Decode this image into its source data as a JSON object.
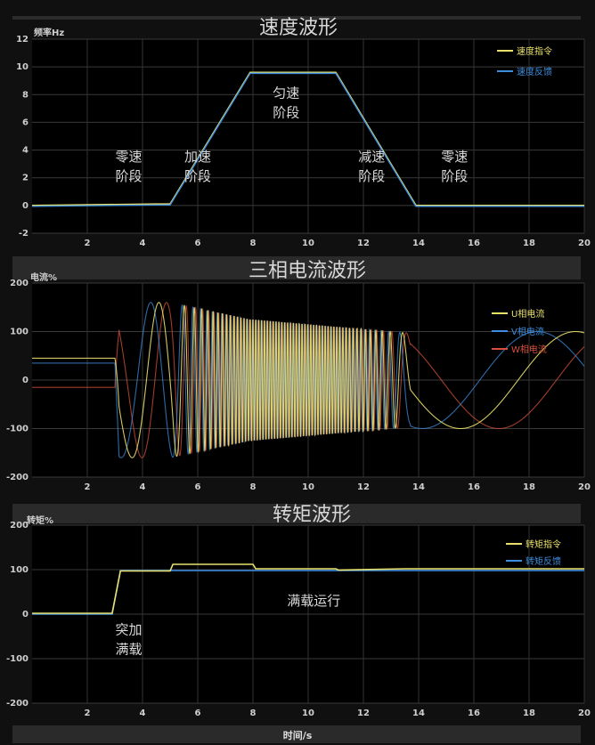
{
  "chart_data": [
    {
      "type": "line",
      "title": "速度波形",
      "ylabel": "频率Hz",
      "xlim": [
        0,
        20
      ],
      "ylim": [
        -2,
        12
      ],
      "xticks": [
        2,
        4,
        6,
        8,
        10,
        12,
        14,
        16,
        18,
        20
      ],
      "yticks": [
        -2,
        0,
        2,
        4,
        6,
        8,
        10,
        12
      ],
      "legend_position": "top-right",
      "grid": true,
      "series": [
        {
          "name": "速度指令",
          "color": "#e8e06a",
          "x": [
            0,
            4.5,
            5.0,
            7.9,
            11.0,
            13.9,
            20
          ],
          "y": [
            0,
            0.1,
            0.1,
            9.6,
            9.6,
            0,
            0
          ]
        },
        {
          "name": "速度反馈",
          "color": "#3d8ee0",
          "x": [
            0,
            4.5,
            5.0,
            7.9,
            11.0,
            13.9,
            20
          ],
          "y": [
            0,
            0.1,
            0.1,
            9.6,
            9.6,
            0,
            0
          ]
        }
      ],
      "annotations": [
        {
          "lines": [
            "零速",
            "阶段"
          ],
          "x": 3.5,
          "y": 3.2
        },
        {
          "lines": [
            "加速",
            "阶段"
          ],
          "x": 6.0,
          "y": 3.2
        },
        {
          "lines": [
            "匀速",
            "阶段"
          ],
          "x": 9.2,
          "y": 7.8
        },
        {
          "lines": [
            "减速",
            "阶段"
          ],
          "x": 12.3,
          "y": 3.2
        },
        {
          "lines": [
            "零速",
            "阶段"
          ],
          "x": 15.3,
          "y": 3.2
        }
      ]
    },
    {
      "type": "line",
      "title": "三相电流波形",
      "ylabel": "电流%",
      "xlim": [
        0,
        20
      ],
      "ylim": [
        -200,
        200
      ],
      "xticks": [
        2,
        4,
        6,
        8,
        10,
        12,
        14,
        16,
        18,
        20
      ],
      "yticks": [
        -200,
        -100,
        0,
        100,
        200
      ],
      "legend_position": "top-right",
      "grid": true,
      "series": [
        {
          "name": "U相电流",
          "color": "#e8e06a"
        },
        {
          "name": "V相电流",
          "color": "#3d8ee0"
        },
        {
          "name": "W相电流",
          "color": "#d8503a"
        }
      ]
    },
    {
      "type": "line",
      "title": "转矩波形",
      "ylabel": "转矩%",
      "xlabel": "时间/s",
      "xlim": [
        0,
        20
      ],
      "ylim": [
        -200,
        200
      ],
      "xticks": [
        2,
        4,
        6,
        8,
        10,
        12,
        14,
        16,
        18,
        20
      ],
      "yticks": [
        -200,
        -100,
        0,
        100,
        200
      ],
      "legend_position": "top-right",
      "grid": true,
      "series": [
        {
          "name": "转矩指令",
          "color": "#e8e06a",
          "x": [
            0,
            2.9,
            3.2,
            5.0,
            5.1,
            8.0,
            8.1,
            11.0,
            11.1,
            13.5,
            20
          ],
          "y": [
            0,
            0,
            95,
            95,
            110,
            110,
            100,
            100,
            97,
            100,
            100
          ]
        },
        {
          "name": "转矩反馈",
          "color": "#3d8ee0",
          "x": [
            0,
            2.9,
            3.2,
            20
          ],
          "y": [
            0,
            0,
            98,
            98
          ]
        }
      ],
      "annotations": [
        {
          "lines": [
            "突加",
            "满载"
          ],
          "x": 3.5,
          "y": -45
        },
        {
          "lines": [
            "满载运行"
          ],
          "x": 10.2,
          "y": 20
        }
      ]
    }
  ]
}
